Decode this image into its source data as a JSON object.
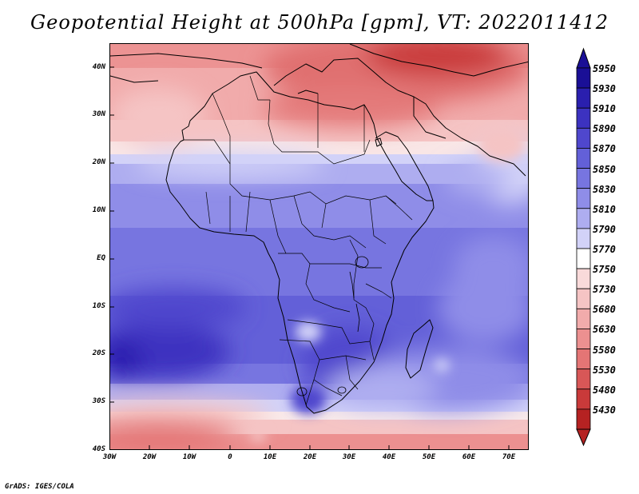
{
  "title": "Geopotential Height at 500hPa [gpm], VT: 2022011412",
  "credit": "GrADS: IGES/COLA",
  "lat_labels": [
    "40N",
    "30N",
    "20N",
    "10N",
    "EQ",
    "10S",
    "20S",
    "30S",
    "40S"
  ],
  "lon_labels": [
    "30W",
    "20W",
    "10W",
    "0",
    "10E",
    "20E",
    "30E",
    "40E",
    "50E",
    "60E",
    "70E"
  ],
  "colorbar": {
    "levels": [
      "5950",
      "5930",
      "5910",
      "5890",
      "5870",
      "5850",
      "5830",
      "5810",
      "5790",
      "5770",
      "5750",
      "5730",
      "5680",
      "5630",
      "5580",
      "5530",
      "5480",
      "5430"
    ],
    "colors": [
      "#1a0f96",
      "#2a1fae",
      "#3c32c0",
      "#4f47cd",
      "#6360d8",
      "#7775e0",
      "#8f8de8",
      "#aeadf0",
      "#d2d2f8",
      "#ffffff",
      "#f9dada",
      "#f5c4c4",
      "#f1abab",
      "#ec9090",
      "#e47575",
      "#d85757",
      "#c93a3a",
      "#b52222"
    ]
  }
}
